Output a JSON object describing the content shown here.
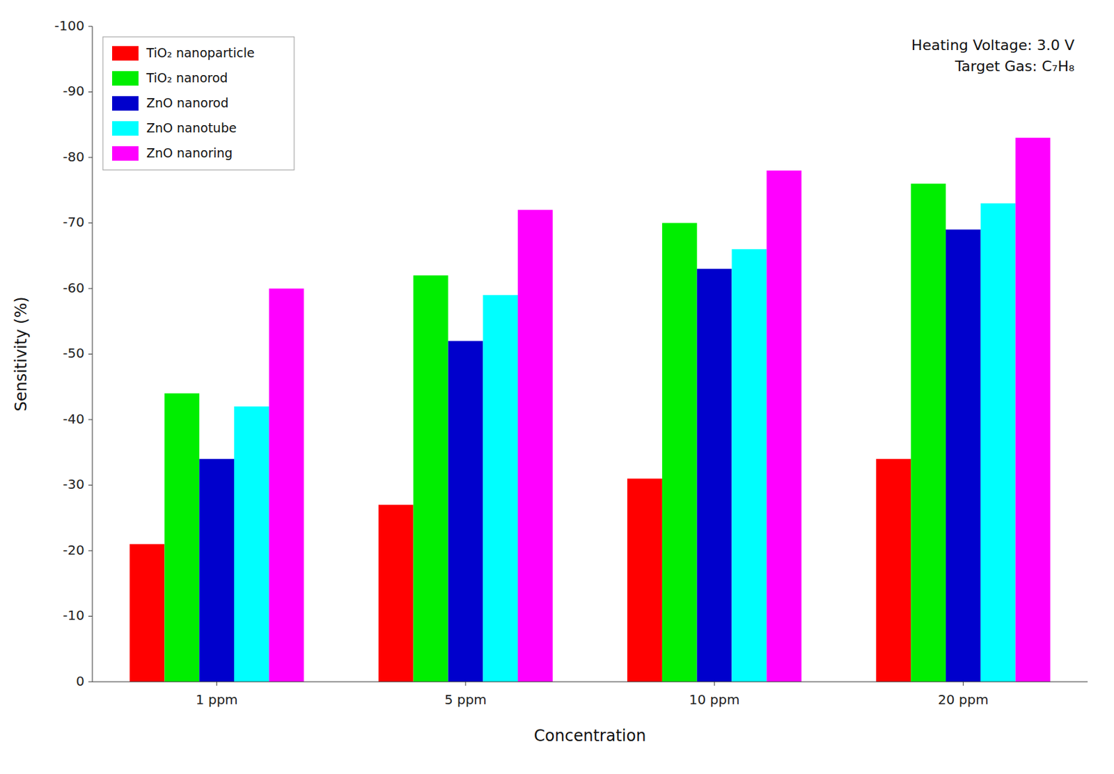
{
  "chart_data": {
    "type": "bar",
    "categories": [
      "1 ppm",
      "5 ppm",
      "10 ppm",
      "20 ppm"
    ],
    "series": [
      {
        "name": "TiO₂ nanoparticle",
        "color": "#ff0000",
        "values": [
          -21,
          -27,
          -31,
          -34
        ]
      },
      {
        "name": "TiO₂ nanorod",
        "color": "#00ee00",
        "values": [
          -44,
          -62,
          -70,
          -76
        ]
      },
      {
        "name": "ZnO nanorod",
        "color": "#0000cc",
        "values": [
          -34,
          -52,
          -63,
          -69
        ]
      },
      {
        "name": "ZnO nanotube",
        "color": "#00ffff",
        "values": [
          -42,
          -59,
          -66,
          -73
        ]
      },
      {
        "name": "ZnO nanoring",
        "color": "#ff00ff",
        "values": [
          -60,
          -72,
          -78,
          -83
        ]
      }
    ],
    "ylabel": "Sensitivity (%)",
    "xlabel": "Concentration",
    "ylim": [
      0,
      -100
    ],
    "yticks": [
      0,
      -10,
      -20,
      -30,
      -40,
      -50,
      -60,
      -70,
      -80,
      -90,
      -100
    ],
    "annotations": [
      "Heating Voltage: 3.0 V",
      "Target Gas: C₇H₈"
    ],
    "legend": "upper left",
    "grid": false
  }
}
